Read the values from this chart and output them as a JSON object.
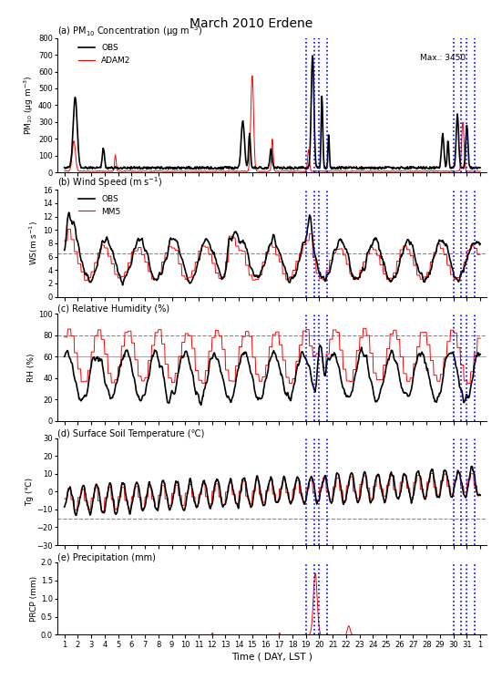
{
  "title": "March 2010 Erdene",
  "panel_labels": [
    "(a) PM$_{10}$ Concentration (μg m$^{-3}$)",
    "(b) Wind Speed (m s$^{-1}$)",
    "(c) Relative Humidity (%)",
    "(d) Surface Soil Temperature (℃)",
    "(e) Precipitation (mm)"
  ],
  "ylabels": [
    "PM$_{10}$ (μg m$^{-3}$)",
    "WS(m s$^{-1}$)",
    "RH (%)",
    "Tg (℃)",
    "PRCP (mm)"
  ],
  "xlabel": "Time ( DAY, LST )",
  "xtick_vals": [
    1,
    2,
    3,
    4,
    5,
    6,
    7,
    8,
    9,
    10,
    11,
    12,
    13,
    14,
    15,
    16,
    17,
    18,
    19,
    20,
    21,
    22,
    23,
    24,
    25,
    26,
    27,
    28,
    29,
    30,
    31,
    32
  ],
  "xtick_labels": [
    "1",
    "2",
    "3",
    "4",
    "5",
    "6",
    "7",
    "8",
    "9",
    "10",
    "11",
    "12",
    "13",
    "14",
    "15",
    "16",
    "17",
    "18",
    "19",
    "20",
    "21",
    "22",
    "23",
    "24",
    "25",
    "26",
    "27",
    "28",
    "29",
    "30",
    "31",
    "1"
  ],
  "xlim": [
    0.5,
    32.5
  ],
  "vlines_group1": [
    19.0,
    19.6,
    20.0,
    20.6
  ],
  "vlines_group2": [
    30.0,
    30.6,
    31.0,
    31.6
  ],
  "threshold_ws": 6.5,
  "threshold_rh": 80,
  "threshold_rh2": 60,
  "threshold_tg": -15,
  "max_annotation": "Max.: 3450",
  "panel_a_ylim": [
    0,
    800
  ],
  "panel_a_yticks": [
    0,
    100,
    200,
    300,
    400,
    500,
    600,
    700,
    800
  ],
  "panel_b_ylim": [
    0,
    16
  ],
  "panel_b_yticks": [
    0,
    2,
    4,
    6,
    8,
    10,
    12,
    14,
    16
  ],
  "panel_c_ylim": [
    0,
    100
  ],
  "panel_c_yticks": [
    0,
    20,
    40,
    60,
    80,
    100
  ],
  "panel_d_ylim": [
    -30,
    30
  ],
  "panel_d_yticks": [
    -30,
    -20,
    -10,
    0,
    10,
    20,
    30
  ],
  "panel_e_ylim": [
    0,
    2.0
  ],
  "panel_e_yticks": [
    0.0,
    0.5,
    1.0,
    1.5,
    2.0
  ],
  "obs_color": "black",
  "mod_color": "red",
  "vline_color": "blue",
  "threshold_color": "#888888"
}
